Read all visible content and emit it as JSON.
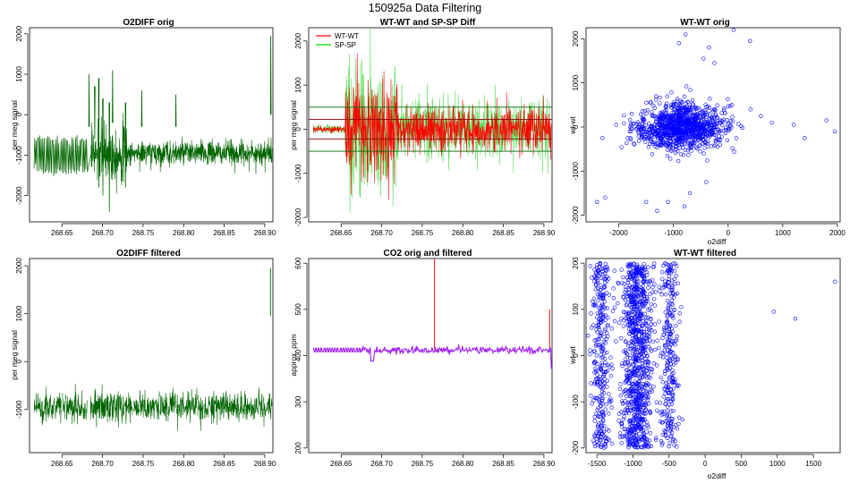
{
  "figure": {
    "title": "150925a   Data Filtering"
  },
  "chart_data": [
    {
      "id": "o2diff_orig",
      "type": "line",
      "title": "O2DIFF orig",
      "xlabel": "",
      "ylabel": "per meg signal",
      "xlim": [
        268.61,
        268.91
      ],
      "ylim": [
        -2650,
        2150
      ],
      "xticks": [
        268.65,
        268.7,
        268.75,
        268.8,
        268.85,
        268.9
      ],
      "xtick_labels": [
        "268.65",
        "268.70",
        "268.75",
        "268.80",
        "268.85",
        "268.90"
      ],
      "yticks": [
        -2000,
        -1000,
        0,
        1000,
        2000
      ],
      "ytick_labels": [
        "-2000",
        "-1000",
        "0",
        "1000",
        "2000"
      ],
      "series": [
        {
          "name": "O2DIFF",
          "color": "#006400",
          "kind": "noisy",
          "segments": [
            [
              268.6155,
              268.6815
            ]
          ],
          "gap_line": [
            [
              268.6815,
              -1400
            ],
            [
              268.6855,
              -1000
            ]
          ],
          "center": -950,
          "spread": 150,
          "spikes": [
            [
              268.683,
              1000,
              -300
            ],
            [
              268.69,
              -600,
              700
            ],
            [
              268.695,
              -1800,
              900
            ],
            [
              268.7,
              -2000,
              400
            ],
            [
              268.708,
              -2400,
              300
            ],
            [
              268.712,
              1100,
              -200
            ],
            [
              268.728,
              -1800,
              300
            ],
            [
              268.748,
              600,
              -300
            ],
            [
              268.79,
              500,
              -300
            ],
            [
              268.907,
              1950,
              0
            ]
          ]
        }
      ]
    },
    {
      "id": "wt_sp_diff",
      "type": "line",
      "title": "WT-WT and SP-SP Diff",
      "xlabel": "",
      "ylabel": "per meg signal",
      "xlim": [
        268.61,
        268.91
      ],
      "ylim": [
        -2100,
        2300
      ],
      "xticks": [
        268.65,
        268.7,
        268.75,
        268.8,
        268.85,
        268.9
      ],
      "xtick_labels": [
        "268.65",
        "268.70",
        "268.75",
        "268.80",
        "268.85",
        "268.90"
      ],
      "yticks": [
        -2000,
        -1000,
        0,
        1000,
        2000
      ],
      "ytick_labels": [
        "-2000",
        "-1000",
        "0",
        "1000",
        "2000"
      ],
      "legend": {
        "position": "top-left",
        "entries": [
          {
            "label": "WT-WT",
            "color": "#ff0000"
          },
          {
            "label": "SP-SP",
            "color": "#00dd00"
          }
        ]
      },
      "hlines": [
        {
          "y": 500,
          "color": "#006400"
        },
        {
          "y": 220,
          "color": "#8b0000"
        },
        {
          "y": -220,
          "color": "#8b0000"
        },
        {
          "y": -500,
          "color": "#006400"
        }
      ],
      "series": [
        {
          "name": "SP-SP",
          "color": "#55dd55",
          "center": 0,
          "spread": 350
        },
        {
          "name": "WT-WT",
          "color": "#ff0000",
          "center": 0,
          "spread": 250
        }
      ]
    },
    {
      "id": "wt_orig_scatter",
      "type": "scatter",
      "title": "WT-WT orig",
      "xlabel": "o2diff",
      "ylabel": "wt-wt",
      "xlim": [
        -2600,
        2050
      ],
      "ylim": [
        -2150,
        2250
      ],
      "xticks": [
        -2000,
        -1000,
        0,
        1000,
        2000
      ],
      "xtick_labels": [
        "-2000",
        "-1000",
        "0",
        "1000",
        "2000"
      ],
      "yticks": [
        -2000,
        -1000,
        0,
        1000,
        2000
      ],
      "ytick_labels": [
        "-2000",
        "-1000",
        "0",
        "1000",
        "2000"
      ],
      "point_color": "#0000ff",
      "cluster": {
        "x_center": -850,
        "x_spread": 380,
        "y_center": 0,
        "y_spread": 260,
        "n": 1100
      },
      "outliers": [
        [
          -2250,
          -1600
        ],
        [
          -2400,
          -1700
        ],
        [
          -2300,
          -250
        ],
        [
          -900,
          1900
        ],
        [
          -780,
          2100
        ],
        [
          100,
          2200
        ],
        [
          400,
          1950
        ],
        [
          -350,
          1800
        ],
        [
          -250,
          1450
        ],
        [
          -450,
          1550
        ],
        [
          600,
          250
        ],
        [
          800,
          100
        ],
        [
          1200,
          50
        ],
        [
          1400,
          -250
        ],
        [
          1800,
          150
        ],
        [
          1950,
          -100
        ],
        [
          -1100,
          -1700
        ],
        [
          -800,
          -1800
        ],
        [
          -1300,
          -1900
        ],
        [
          -1500,
          -1700
        ],
        [
          -700,
          -1500
        ],
        [
          -400,
          -1250
        ]
      ]
    },
    {
      "id": "o2diff_filtered",
      "type": "line",
      "title": "O2DIFF filtered",
      "xlabel": "",
      "ylabel": "per meg signal",
      "xlim": [
        268.61,
        268.91
      ],
      "ylim": [
        -1900,
        2150
      ],
      "xticks": [
        268.65,
        268.7,
        268.75,
        268.8,
        268.85,
        268.9
      ],
      "xtick_labels": [
        "268.65",
        "268.70",
        "268.75",
        "268.80",
        "268.85",
        "268.90"
      ],
      "yticks": [
        -1000,
        0,
        1000,
        2000
      ],
      "ytick_labels": [
        "-1000",
        "0",
        "1000",
        "2000"
      ],
      "series": [
        {
          "name": "O2DIFF filtered",
          "color": "#006400",
          "center": -950,
          "spread": 150,
          "spikes": [
            [
              268.907,
              1950,
              950
            ]
          ]
        }
      ]
    },
    {
      "id": "co2_orig_filtered",
      "type": "line",
      "title": "CO2 orig and filtered",
      "xlabel": "",
      "ylabel": "approx. ppm",
      "xlim": [
        268.61,
        268.91
      ],
      "ylim": [
        190,
        610
      ],
      "xticks": [
        268.65,
        268.7,
        268.75,
        268.8,
        268.85,
        268.9
      ],
      "xtick_labels": [
        "268.65",
        "268.70",
        "268.75",
        "268.80",
        "268.85",
        "268.90"
      ],
      "yticks": [
        200,
        300,
        400,
        500,
        600
      ],
      "ytick_labels": [
        "200",
        "300",
        "400",
        "500",
        "600"
      ],
      "series": [
        {
          "name": "CO2 orig",
          "color": "#ff0000",
          "spikes": [
            [
              268.765,
              610,
              415
            ],
            [
              268.907,
              500,
              415
            ]
          ]
        },
        {
          "name": "CO2 filtered",
          "color": "#a020f0",
          "base": 412,
          "dips": [
            [
              268.6865,
              268.6905,
              388
            ],
            [
              268.909,
              268.9115,
              372
            ]
          ]
        }
      ]
    },
    {
      "id": "wt_filtered_scatter",
      "type": "scatter",
      "title": "WT-WT filtered",
      "xlabel": "o2diff",
      "ylabel": "wt-wt",
      "xlim": [
        -1650,
        1870
      ],
      "ylim": [
        -210,
        210
      ],
      "xticks": [
        -1500,
        -1000,
        -500,
        0,
        500,
        1000,
        1500
      ],
      "xtick_labels": [
        "-1500",
        "-1000",
        "-500",
        "0",
        "500",
        "1000",
        "1500"
      ],
      "yticks": [
        -200,
        -100,
        0,
        100,
        200
      ],
      "ytick_labels": [
        "-200",
        "-100",
        "0",
        "100",
        "200"
      ],
      "point_color": "#0000ff",
      "bands": [
        {
          "x_center": -1450,
          "x_spread": 70,
          "n": 320
        },
        {
          "x_center": -950,
          "x_spread": 110,
          "n": 900
        },
        {
          "x_center": -500,
          "x_spread": 60,
          "n": 280
        }
      ],
      "y_range": [
        -200,
        200
      ],
      "outliers": [
        [
          950,
          95
        ],
        [
          1250,
          80
        ],
        [
          1800,
          160
        ]
      ]
    }
  ]
}
